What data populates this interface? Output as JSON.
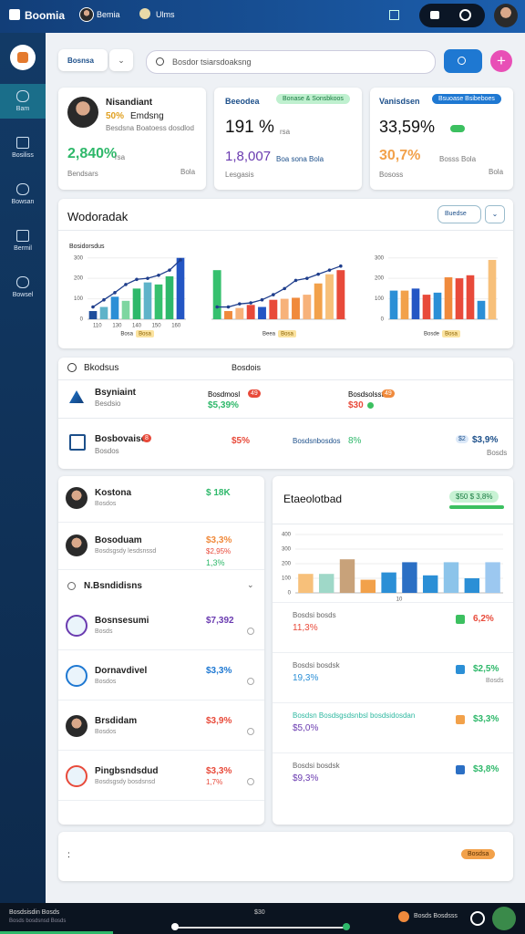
{
  "topbar": {
    "brand": "Boomia",
    "user": "Bemia",
    "menu": "Ulms"
  },
  "sidebar": [
    "Bam",
    "Bosiliss",
    "Bowsan",
    "Bermil",
    "Bowsel"
  ],
  "toolbar": {
    "filter": "Bosnsa",
    "search": "Bosdor tsiarsdoaksng"
  },
  "stats": [
    {
      "title": "Nisandiant",
      "highlight": "50%",
      "subtitle": "Emdsng",
      "note": "Besdsna Boatoess dosdlod",
      "value": "2,840%",
      "unit": "rsa",
      "footer": "Bendsars",
      "footer_right": "Bola"
    },
    {
      "title": "Beeodea",
      "badge": "Bonase & Sonsbkoos",
      "value": "191 %",
      "unit": "rsa",
      "value2": "1,8,007",
      "note": "Boa sona Bola",
      "footer": "Lesgasis"
    },
    {
      "title": "Vanisdsen",
      "badge": "Bsuoase Bsibeboes",
      "value": "33,59%",
      "value2": "30,7%",
      "note": "Bosss Bola",
      "footer": "Bososs",
      "footer_right": "Bola"
    }
  ],
  "overview": {
    "title": "Wodoradak",
    "button": "Buedse",
    "charts": [
      {
        "title": "Bosidorsdus",
        "ylim": [
          0,
          330
        ],
        "yticks": [
          0,
          100,
          200,
          300
        ],
        "xlabels": [
          "110",
          "130",
          "140",
          "150",
          "160"
        ],
        "bars": [
          40,
          60,
          110,
          90,
          150,
          180,
          170,
          210,
          300
        ],
        "colors": [
          "#1f4e9c",
          "#5fb3c9",
          "#2b8fd6",
          "#7ed6a0",
          "#2eb86a",
          "#5fb3c9",
          "#36c06e",
          "#2eb86a",
          "#2456c4"
        ],
        "line": [
          60,
          95,
          130,
          170,
          195,
          200,
          215,
          240,
          290
        ],
        "legend": [
          "Bosa",
          "Bosa"
        ]
      },
      {
        "ylim": [
          0,
          330
        ],
        "bars": [
          240,
          40,
          55,
          70,
          60,
          95,
          100,
          105,
          120,
          175,
          220,
          240
        ],
        "colors": [
          "#36c06e",
          "#f08a3c",
          "#f7b27a",
          "#e84a3a",
          "#2456c4",
          "#e84a3a",
          "#f7b27a",
          "#f08a3c",
          "#f7b27a",
          "#f2a14a",
          "#f7c07a",
          "#e84a3a"
        ],
        "line": [
          60,
          60,
          75,
          80,
          95,
          120,
          150,
          190,
          200,
          220,
          240,
          260
        ],
        "legend": [
          "Beea",
          "Bosa"
        ]
      },
      {
        "ylim": [
          0,
          330
        ],
        "yticks": [
          0,
          100,
          200,
          300
        ],
        "bars": [
          140,
          140,
          150,
          120,
          130,
          205,
          200,
          215,
          90,
          290
        ],
        "colors": [
          "#2b8fd6",
          "#f2a14a",
          "#2456c4",
          "#e84a3a",
          "#2b8fd6",
          "#f08a3c",
          "#e84a3a",
          "#e84a3a",
          "#2b8fd6",
          "#f7c07a"
        ],
        "legend": [
          "Bosde",
          "Bosa"
        ]
      }
    ]
  },
  "status": {
    "headers": [
      "Bkodsus",
      "Bosdois"
    ],
    "rows": [
      {
        "name": "Bsyniaint",
        "sub": "Besdsio",
        "label": "Bosdmosl",
        "tag": "49",
        "value": "$5,39%",
        "right_label": "Bosdsolsst",
        "right_tag": "49",
        "right_value": "$30"
      },
      {
        "name": "Bosbovaiso",
        "sub": "Bosdos",
        "tag": "8",
        "value": "$5%",
        "mid": "Bosdsnbosdos",
        "mid_value": "8%",
        "right_tag": "$2",
        "right_value": "$3,9%",
        "right_sub": "Bosds"
      }
    ]
  },
  "people": {
    "items": [
      {
        "name": "Kostona",
        "sub": "Bosdos",
        "value": "$ 18K"
      },
      {
        "name": "Bosoduam",
        "sub": "Bosdsgsdy lesdsnssd",
        "value": "$3,3%",
        "value2": "$2,95%",
        "value3": "1,3%"
      }
    ],
    "section": "N.Bsndidisns",
    "more": [
      {
        "name": "Bosnsesumi",
        "sub": "Bosds",
        "value": "$7,392"
      },
      {
        "name": "Dornavdivel",
        "sub": "Bosdos",
        "value": "$3,3%"
      },
      {
        "name": "Brsdidam",
        "sub": "Bosdos",
        "value": "$3,9%"
      },
      {
        "name": "Pingbsndsdud",
        "sub": "Bosdsgsdy bosdsnsd",
        "value": "$3,3%",
        "value2": "1,7%"
      }
    ]
  },
  "panel": {
    "title": "Etaeolotbad",
    "badge": "$50 $ 3,8%",
    "chart": {
      "ylim": [
        0,
        400
      ],
      "yticks": [
        0,
        100,
        200,
        300,
        400
      ],
      "xlabels": [
        "10"
      ],
      "bars": [
        130,
        130,
        230,
        90,
        140,
        210,
        120,
        210,
        100,
        210
      ],
      "colors": [
        "#f7c07a",
        "#9fd8c8",
        "#c8a27a",
        "#f2a14a",
        "#2b8fd6",
        "#2b6fc4",
        "#2b8fd6",
        "#8cc4ea",
        "#2b8fd6",
        "#9cc8f0"
      ]
    },
    "rows": [
      {
        "label": "Bosdsi bosds",
        "value": "11,3%",
        "right": "6,2%"
      },
      {
        "label": "Bosdsi bosdsk",
        "value": "19,3%",
        "right": "$2,5%",
        "right_sub": "Bosds"
      },
      {
        "label": "Bosdsn Bosdsgsdsnbsl bosdsidosdan",
        "value": "$5,0%",
        "right": "$3,3%"
      },
      {
        "label": "Bosdsi bosdsk",
        "value": "$9,3%",
        "right": "$3,8%"
      }
    ]
  },
  "footer_badge": "Bosdsa",
  "bottombar": {
    "left": "Bosdsisdin Bosds",
    "left2": "Bosds bosdsnsd Bosds",
    "center": "$30",
    "right": "Bosds Bosdsss"
  }
}
